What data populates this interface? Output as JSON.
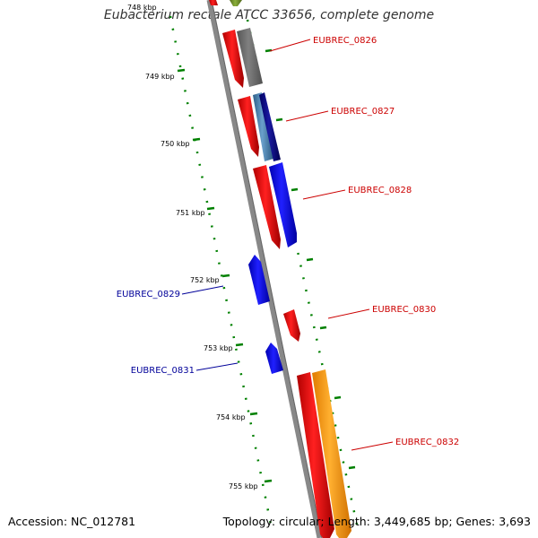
{
  "title": "Eubacterium rectale ATCC 33656, complete genome",
  "footer": {
    "accession": "Accession: NC_012781",
    "summary": "Topology: circular; Length: 3,449,685 bp; Genes: 3,693"
  },
  "ticks": [
    "748 kbp",
    "749 kbp",
    "750 kbp",
    "751 kbp",
    "752 kbp",
    "753 kbp",
    "754 kbp",
    "755 kbp"
  ],
  "genes": [
    {
      "name": "EUBREC_0826",
      "color": "#cc0000",
      "strand": "+"
    },
    {
      "name": "EUBREC_0827",
      "color": "#cc0000",
      "strand": "+"
    },
    {
      "name": "EUBREC_0828",
      "color": "#cc0000",
      "strand": "+"
    },
    {
      "name": "EUBREC_0829",
      "color": "#000099",
      "strand": "-"
    },
    {
      "name": "EUBREC_0830",
      "color": "#cc0000",
      "strand": "+"
    },
    {
      "name": "EUBREC_0831",
      "color": "#000099",
      "strand": "-"
    },
    {
      "name": "EUBREC_0832",
      "color": "#cc0000",
      "strand": "+"
    }
  ],
  "colors": {
    "cds_forward": "#ff0000",
    "cds_reverse": "#0000ff",
    "backbone": "#888888",
    "tick": "#008000",
    "gray_feature": "#666666",
    "navy_feature": "#000080",
    "steelblue_feature": "#4682b4",
    "orange_feature": "#ff9900",
    "olive_feature": "#6b8e23"
  }
}
